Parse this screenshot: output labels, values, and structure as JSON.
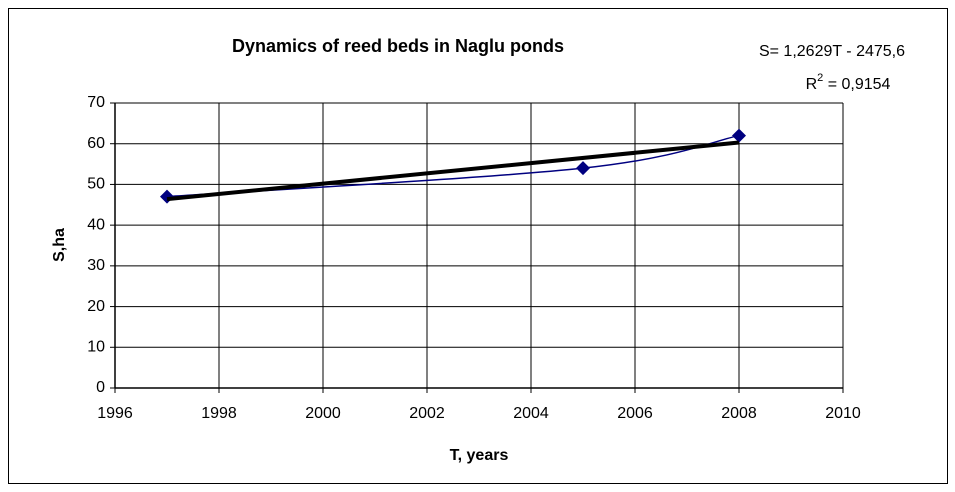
{
  "chart_data": {
    "type": "scatter",
    "title": "Dynamics of reed beds in Naglu ponds",
    "annotations": [
      "S= 1,2629T - 2475,6",
      {
        "base": "R",
        "sup": "2",
        "rest": " = 0,9154"
      }
    ],
    "xlabel": "T, years",
    "ylabel": "S,ha",
    "series": [
      {
        "color": "#000080",
        "marker": "diamond",
        "smooth": true,
        "x": [
          1997,
          2005,
          2008
        ],
        "values": [
          47,
          54,
          62
        ]
      },
      {
        "color": "#000000",
        "marker": "none",
        "smooth": false,
        "x": [
          1997,
          2008
        ],
        "values": [
          46.4,
          60.3
        ]
      }
    ],
    "xlim": [
      1996,
      2010
    ],
    "xticks": [
      1996,
      1998,
      2000,
      2002,
      2004,
      2006,
      2008,
      2010
    ],
    "ylim": [
      0,
      70
    ],
    "yticks": [
      0,
      10,
      20,
      30,
      40,
      50,
      60,
      70
    ],
    "grid": true
  }
}
